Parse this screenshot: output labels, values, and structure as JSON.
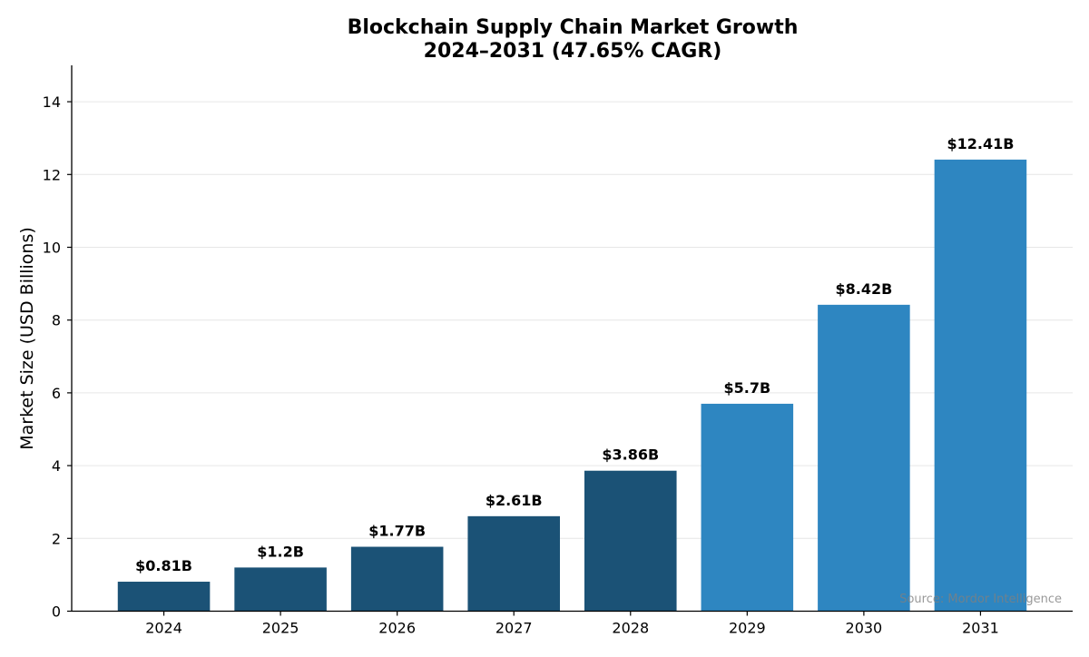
{
  "chart_data": {
    "type": "bar",
    "title": "Blockchain Supply Chain Market Growth",
    "subtitle": "2024–2031 (47.65% CAGR)",
    "xlabel": "",
    "ylabel": "Market Size (USD Billions)",
    "categories": [
      "2024",
      "2025",
      "2026",
      "2027",
      "2028",
      "2029",
      "2030",
      "2031"
    ],
    "values": [
      0.81,
      1.2,
      1.77,
      2.61,
      3.86,
      5.7,
      8.42,
      12.41
    ],
    "data_labels": [
      "$0.81B",
      "$1.2B",
      "$1.77B",
      "$2.61B",
      "$3.86B",
      "$5.7B",
      "$8.42B",
      "$12.41B"
    ],
    "bar_colors": [
      "#1b5276",
      "#1b5276",
      "#1b5276",
      "#1b5276",
      "#1b5276",
      "#2e86c1",
      "#2e86c1",
      "#2e86c1"
    ],
    "ylim": [
      0,
      15
    ],
    "yticks": [
      0,
      2,
      4,
      6,
      8,
      10,
      12,
      14
    ],
    "grid": "horizontal",
    "annotation": "Source: Mordor Intelligence"
  }
}
